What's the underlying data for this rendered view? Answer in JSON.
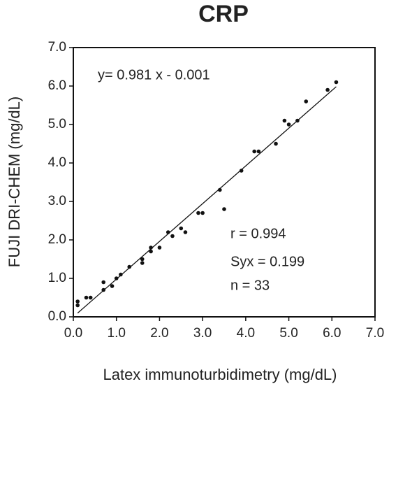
{
  "chart_data": {
    "type": "scatter",
    "title": "CRP",
    "xlabel": "Latex immunoturbidimetry (mg/dL)",
    "ylabel": "FUJI DRI-CHEM (mg/dL)",
    "equation": "y= 0.981 x - 0.001",
    "fit": {
      "slope": 0.981,
      "intercept": -0.001
    },
    "annotations": [
      "r = 0.994",
      "Syx = 0.199",
      "n = 33"
    ],
    "color": "#111111",
    "fit_color": "#111111",
    "title_color": "#1aa3b0",
    "x": [
      0.1,
      0.1,
      0.3,
      0.4,
      0.7,
      0.7,
      0.9,
      1.0,
      1.1,
      1.3,
      1.6,
      1.6,
      1.8,
      1.8,
      2.0,
      2.2,
      2.3,
      2.5,
      2.6,
      2.9,
      3.0,
      3.4,
      3.5,
      3.9,
      4.2,
      4.3,
      4.7,
      4.9,
      5.0,
      5.2,
      5.4,
      5.9,
      6.1
    ],
    "values": [
      0.4,
      0.3,
      0.5,
      0.5,
      0.9,
      0.7,
      0.8,
      1.0,
      1.1,
      1.3,
      1.5,
      1.4,
      1.8,
      1.7,
      1.8,
      2.2,
      2.1,
      2.3,
      2.2,
      2.7,
      2.7,
      3.3,
      2.8,
      3.8,
      4.3,
      4.3,
      4.5,
      5.1,
      5.0,
      5.1,
      5.6,
      5.9,
      6.1
    ],
    "xlim": [
      0,
      7
    ],
    "ylim": [
      0,
      7
    ],
    "xticks": [
      {
        "value": 0,
        "label": "0.0"
      },
      {
        "value": 1,
        "label": "1.0"
      },
      {
        "value": 2,
        "label": "2.0"
      },
      {
        "value": 3,
        "label": "3.0"
      },
      {
        "value": 4,
        "label": "4.0"
      },
      {
        "value": 5,
        "label": "5.0"
      },
      {
        "value": 6,
        "label": "6.0"
      },
      {
        "value": 7,
        "label": "7.0"
      }
    ],
    "yticks": [
      {
        "value": 0,
        "label": "0.0"
      },
      {
        "value": 1,
        "label": "1.0"
      },
      {
        "value": 2,
        "label": "2.0"
      },
      {
        "value": 3,
        "label": "3.0"
      },
      {
        "value": 4,
        "label": "4.0"
      },
      {
        "value": 5,
        "label": "5.0"
      },
      {
        "value": 6,
        "label": "6.0"
      },
      {
        "value": 7,
        "label": "7.0"
      }
    ]
  }
}
